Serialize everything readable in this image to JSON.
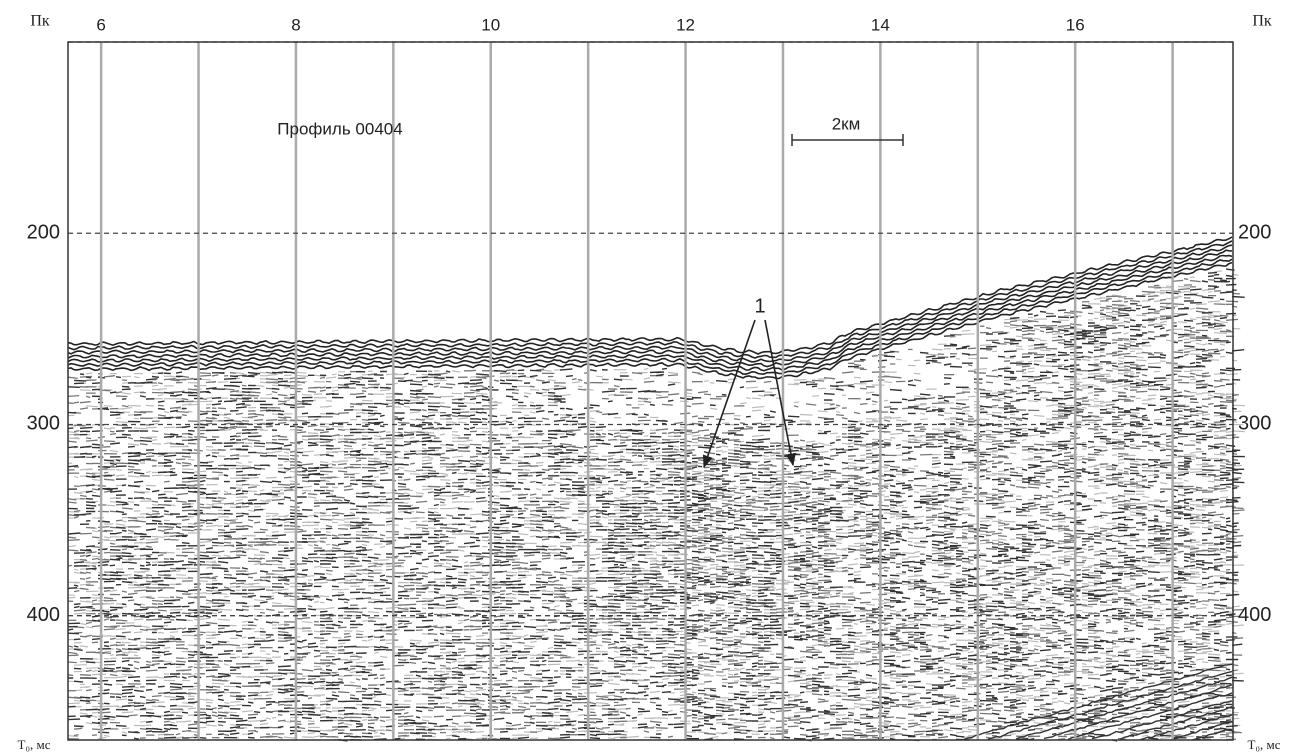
{
  "figure": {
    "title": "Профиль 00404",
    "scale_label": "2км",
    "annotation": "1",
    "x_axis": {
      "label": "Пк",
      "lim": [
        5.66,
        17.62
      ],
      "ticks": [
        6,
        8,
        10,
        12,
        14,
        16
      ],
      "minor": [
        7,
        9,
        11,
        13,
        15,
        17
      ]
    },
    "y_axis": {
      "label": "T₀, мс",
      "lim": [
        100,
        465
      ],
      "ticks": [
        200,
        300,
        400
      ]
    }
  }
}
